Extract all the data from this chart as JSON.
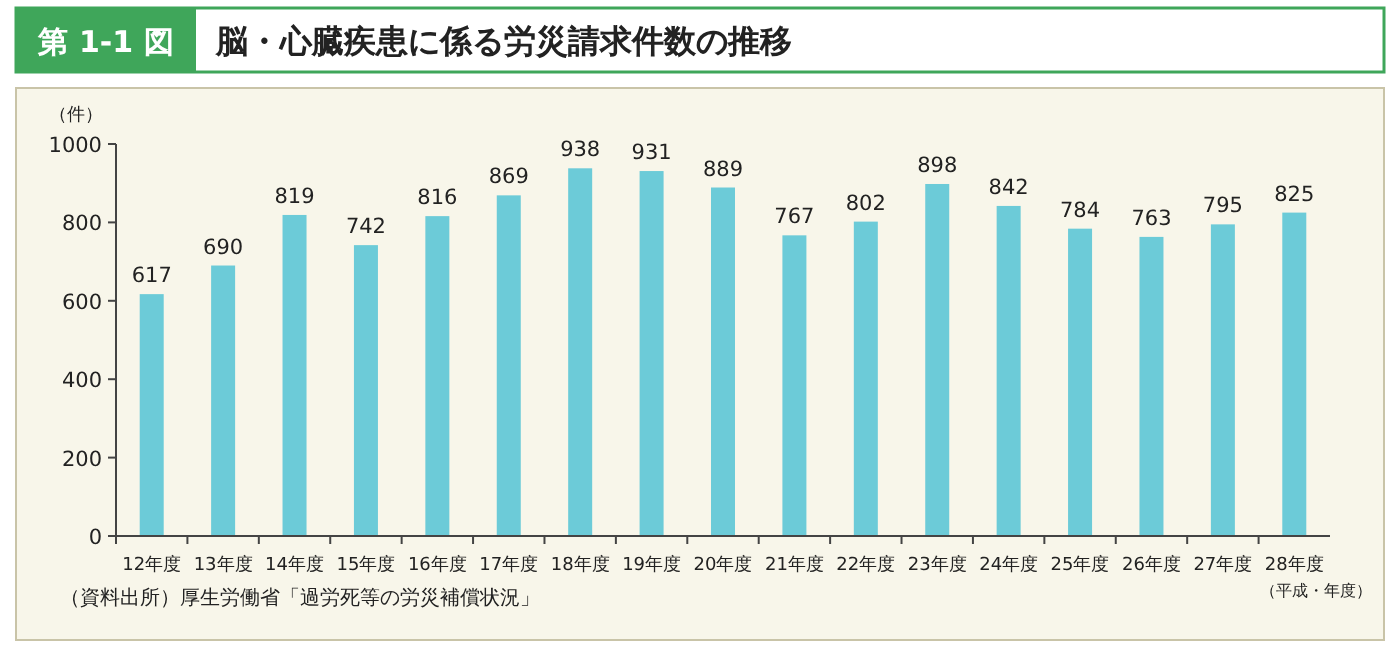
{
  "chart_data": {
    "type": "bar",
    "title": "脳・心臓疾患に係る労災請求件数の推移",
    "annotations": [
      "第 1-1 図",
      "（資料出所）厚生労働省「過労死等の労災補償状況」"
    ],
    "ylabel": "（件）",
    "xlabel": "（平成・年度）",
    "categories": [
      "12年度",
      "13年度",
      "14年度",
      "15年度",
      "16年度",
      "17年度",
      "18年度",
      "19年度",
      "20年度",
      "21年度",
      "22年度",
      "23年度",
      "24年度",
      "25年度",
      "26年度",
      "27年度",
      "28年度"
    ],
    "values": [
      617,
      690,
      819,
      742,
      816,
      869,
      938,
      931,
      889,
      767,
      802,
      898,
      842,
      784,
      763,
      795,
      825
    ],
    "color": "#6ccbd8",
    "ylim": [
      0,
      1000
    ],
    "yticks": [
      0,
      200,
      400,
      600,
      800,
      1000
    ],
    "data_labels": true
  }
}
